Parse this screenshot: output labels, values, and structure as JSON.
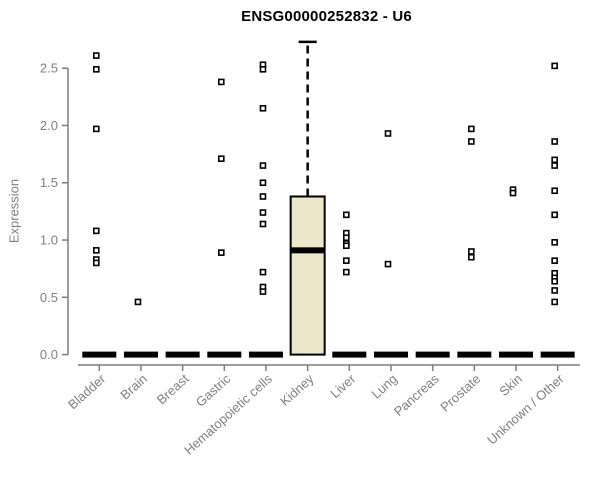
{
  "chart_data": {
    "type": "boxplot",
    "title": "ENSG00000252832 - U6",
    "xlabel": "",
    "ylabel": "Expression",
    "ylim": [
      0,
      2.75
    ],
    "yticks": [
      0,
      0.5,
      1.0,
      1.5,
      2.0,
      2.5
    ],
    "grid": "off",
    "legend": "none",
    "categories": [
      "Bladder",
      "Brain",
      "Breast",
      "Gastric",
      "Hematopoietic cells",
      "Kidney",
      "Liver",
      "Lung",
      "Pancreas",
      "Prostate",
      "Skin",
      "Unknown / Other"
    ],
    "boxes": [
      {
        "q1": 0,
        "median": 0,
        "q3": 0,
        "whisker_low": 0,
        "whisker_high": 0
      },
      {
        "q1": 0,
        "median": 0,
        "q3": 0,
        "whisker_low": 0,
        "whisker_high": 0
      },
      {
        "q1": 0,
        "median": 0,
        "q3": 0,
        "whisker_low": 0,
        "whisker_high": 0
      },
      {
        "q1": 0,
        "median": 0,
        "q3": 0,
        "whisker_low": 0,
        "whisker_high": 0
      },
      {
        "q1": 0,
        "median": 0,
        "q3": 0,
        "whisker_low": 0,
        "whisker_high": 0
      },
      {
        "q1": 0,
        "median": 0.91,
        "q3": 1.38,
        "whisker_low": 0,
        "whisker_high": 2.73
      },
      {
        "q1": 0,
        "median": 0,
        "q3": 0,
        "whisker_low": 0,
        "whisker_high": 0
      },
      {
        "q1": 0,
        "median": 0,
        "q3": 0,
        "whisker_low": 0,
        "whisker_high": 0
      },
      {
        "q1": 0,
        "median": 0,
        "q3": 0,
        "whisker_low": 0,
        "whisker_high": 0
      },
      {
        "q1": 0,
        "median": 0,
        "q3": 0,
        "whisker_low": 0,
        "whisker_high": 0
      },
      {
        "q1": 0,
        "median": 0,
        "q3": 0,
        "whisker_low": 0,
        "whisker_high": 0
      },
      {
        "q1": 0,
        "median": 0,
        "q3": 0,
        "whisker_low": 0,
        "whisker_high": 0
      }
    ],
    "outliers": [
      [
        2.61,
        2.49,
        1.97,
        1.08,
        0.91,
        0.83,
        0.8
      ],
      [
        0.46
      ],
      [],
      [
        2.38,
        1.71,
        0.89
      ],
      [
        2.53,
        2.49,
        2.15,
        1.65,
        1.5,
        1.38,
        1.24,
        1.14,
        0.72,
        0.59,
        0.55
      ],
      [],
      [
        1.22,
        1.06,
        1.02,
        0.97,
        0.95,
        0.82,
        0.72
      ],
      [
        1.93,
        0.79
      ],
      [],
      [
        1.97,
        1.86,
        0.9,
        0.85
      ],
      [
        1.44,
        1.41
      ],
      [
        2.52,
        1.86,
        1.7,
        1.65,
        1.43,
        1.22,
        0.98,
        0.82,
        0.71,
        0.67,
        0.64,
        0.56,
        0.46
      ]
    ],
    "colors": {
      "box_fill": "#ece7ca",
      "box_stroke": "#000000",
      "median": "#000000",
      "outlier_stroke": "#000000",
      "outlier_fill": "#ffffff",
      "axis": "#7d7d7d",
      "tick_label": "#808080",
      "title": "#000000"
    }
  }
}
